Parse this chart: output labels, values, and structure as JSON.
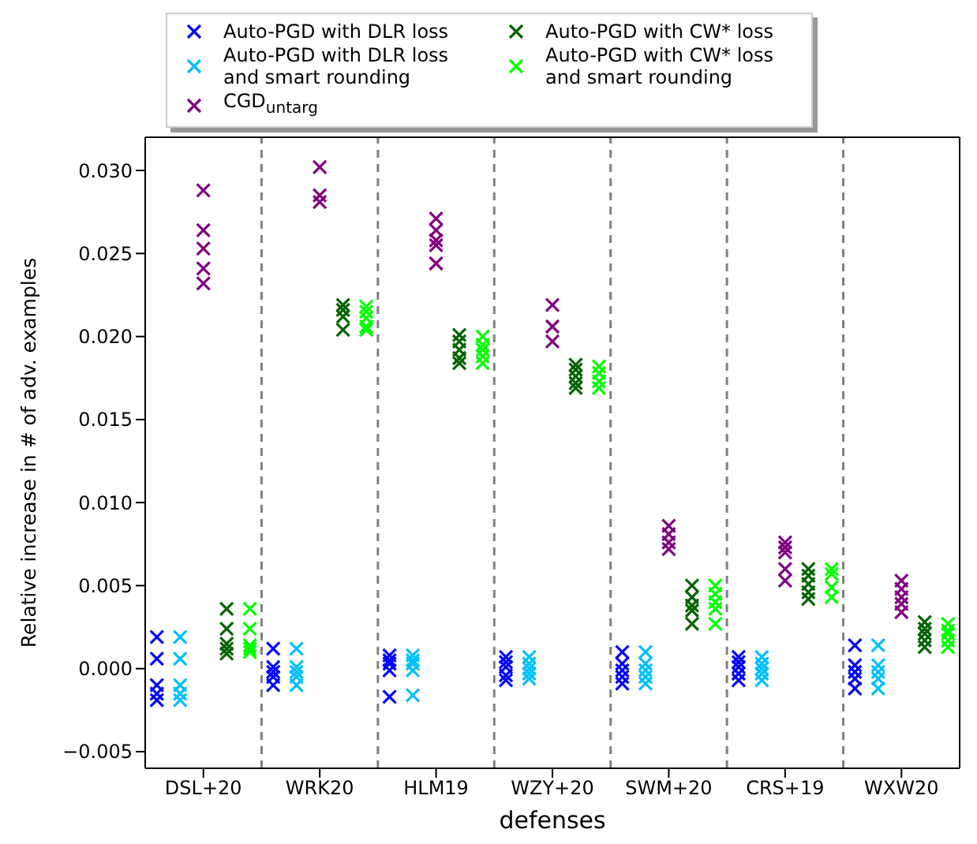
{
  "chart_data": {
    "type": "scatter",
    "xlabel": "defenses",
    "ylabel": "Relative increase in # of adv. examples",
    "categories": [
      "DSL+20",
      "WRK20",
      "HLM19",
      "WZY+20",
      "SWM+20",
      "CRS+19",
      "WXW20"
    ],
    "marker": "cross",
    "legend": "top",
    "ylim": [
      -0.006,
      0.032
    ],
    "yticks": [
      {
        "value": -0.005,
        "label": "−0.005"
      },
      {
        "value": 0,
        "label": "0.000"
      },
      {
        "value": 0.005,
        "label": "0.005"
      },
      {
        "value": 0.01,
        "label": "0.010"
      },
      {
        "value": 0.015,
        "label": "0.015"
      },
      {
        "value": 0.02,
        "label": "0.020"
      },
      {
        "value": 0.025,
        "label": "0.025"
      },
      {
        "value": 0.03,
        "label": "0.030"
      }
    ],
    "series": [
      {
        "name": "Auto-PGD with DLR loss",
        "color": "#0000ff",
        "x": [
          "DSL+20",
          "DSL+20",
          "DSL+20",
          "DSL+20",
          "DSL+20",
          "WRK20",
          "WRK20",
          "WRK20",
          "WRK20",
          "WRK20",
          "HLM19",
          "HLM19",
          "HLM19",
          "HLM19",
          "HLM19",
          "WZY+20",
          "WZY+20",
          "WZY+20",
          "WZY+20",
          "WZY+20",
          "SWM+20",
          "SWM+20",
          "SWM+20",
          "SWM+20",
          "SWM+20",
          "CRS+19",
          "CRS+19",
          "CRS+19",
          "CRS+19",
          "CRS+19",
          "WXW20",
          "WXW20",
          "WXW20",
          "WXW20",
          "WXW20"
        ],
        "values": [
          0.0019,
          0.0006,
          -0.001,
          -0.0015,
          -0.0019,
          0.0012,
          0.0001,
          -0.0002,
          -0.0005,
          -0.001,
          0.0008,
          0.0005,
          0.0003,
          -0.0001,
          -0.0017,
          0.0007,
          0.0004,
          0.0001,
          -0.0004,
          -0.0007,
          0.001,
          0.0003,
          -0.0001,
          -0.0005,
          -0.0009,
          0.0007,
          0.0004,
          0.0001,
          -0.0003,
          -0.0007,
          0.0014,
          0.0002,
          -0.0002,
          -0.0006,
          -0.0012
        ]
      },
      {
        "name": "Auto-PGD with DLR loss and smart rounding",
        "color": "#00bfff",
        "x": [
          "DSL+20",
          "DSL+20",
          "DSL+20",
          "DSL+20",
          "DSL+20",
          "WRK20",
          "WRK20",
          "WRK20",
          "WRK20",
          "WRK20",
          "HLM19",
          "HLM19",
          "HLM19",
          "HLM19",
          "HLM19",
          "WZY+20",
          "WZY+20",
          "WZY+20",
          "WZY+20",
          "WZY+20",
          "SWM+20",
          "SWM+20",
          "SWM+20",
          "SWM+20",
          "SWM+20",
          "CRS+19",
          "CRS+19",
          "CRS+19",
          "CRS+19",
          "CRS+19",
          "WXW20",
          "WXW20",
          "WXW20",
          "WXW20",
          "WXW20"
        ],
        "values": [
          0.0019,
          0.0006,
          -0.001,
          -0.0015,
          -0.0019,
          0.0012,
          0.0001,
          -0.0002,
          -0.0005,
          -0.001,
          0.0008,
          0.0005,
          0.0003,
          -0.0001,
          -0.0016,
          0.0007,
          0.0003,
          0,
          -0.0003,
          -0.0006,
          0.001,
          0.0003,
          -0.0001,
          -0.0005,
          -0.0009,
          0.0007,
          0.0003,
          0,
          -0.0003,
          -0.0007,
          0.0014,
          0.0002,
          -0.0002,
          -0.0006,
          -0.0012
        ]
      },
      {
        "name": "CGD$_{untarg}$",
        "color": "#800080",
        "x": [
          "DSL+20",
          "DSL+20",
          "DSL+20",
          "DSL+20",
          "DSL+20",
          "WRK20",
          "WRK20",
          "WRK20",
          "WRK20",
          "WRK20",
          "HLM19",
          "HLM19",
          "HLM19",
          "HLM19",
          "HLM19",
          "WZY+20",
          "WZY+20",
          "WZY+20",
          "SWM+20",
          "SWM+20",
          "SWM+20",
          "SWM+20",
          "CRS+19",
          "CRS+19",
          "CRS+19",
          "CRS+19",
          "CRS+19",
          "WXW20",
          "WXW20",
          "WXW20",
          "WXW20",
          "WXW20"
        ],
        "values": [
          0.0288,
          0.0264,
          0.0253,
          0.0241,
          0.0232,
          0.0302,
          null,
          null,
          0.0285,
          0.0281,
          0.0271,
          0.0264,
          0.0258,
          0.0255,
          0.0244,
          0.0219,
          0.0206,
          0.0197,
          0.0086,
          0.0081,
          0.0076,
          0.0072,
          0.0076,
          0.0073,
          0.007,
          0.006,
          0.0053,
          0.0053,
          0.0048,
          0.0043,
          0.0039,
          0.0034
        ]
      },
      {
        "name": "Auto-PGD with CW* loss",
        "color": "#006400",
        "x": [
          "DSL+20",
          "DSL+20",
          "DSL+20",
          "DSL+20",
          "DSL+20",
          "WRK20",
          "WRK20",
          "WRK20",
          "WRK20",
          "WRK20",
          "HLM19",
          "HLM19",
          "HLM19",
          "HLM19",
          "HLM19",
          "WZY+20",
          "WZY+20",
          "WZY+20",
          "WZY+20",
          "WZY+20",
          "SWM+20",
          "SWM+20",
          "SWM+20",
          "SWM+20",
          "SWM+20",
          "CRS+19",
          "CRS+19",
          "CRS+19",
          "CRS+19",
          "CRS+19",
          "WXW20",
          "WXW20",
          "WXW20",
          "WXW20",
          "WXW20"
        ],
        "values": [
          0.0036,
          0.0024,
          0.0015,
          0.0012,
          0.0009,
          0.0219,
          0.0216,
          0.0212,
          null,
          0.0204,
          0.0201,
          0.0197,
          0.0192,
          0.0187,
          0.0184,
          0.0183,
          0.018,
          0.0176,
          0.0172,
          0.0169,
          0.005,
          0.0043,
          0.0038,
          0.0035,
          0.0027,
          0.006,
          0.0056,
          0.0051,
          0.0046,
          0.0042,
          0.0028,
          0.0024,
          0.0021,
          0.0017,
          0.0013
        ]
      },
      {
        "name": "Auto-PGD with CW* loss and smart rounding",
        "color": "#00ff00",
        "x": [
          "DSL+20",
          "DSL+20",
          "DSL+20",
          "DSL+20",
          "DSL+20",
          "WRK20",
          "WRK20",
          "WRK20",
          "WRK20",
          "WRK20",
          "HLM19",
          "HLM19",
          "HLM19",
          "HLM19",
          "HLM19",
          "WZY+20",
          "WZY+20",
          "WZY+20",
          "WZY+20",
          "SWM+20",
          "SWM+20",
          "SWM+20",
          "SWM+20",
          "SWM+20",
          "CRS+19",
          "CRS+19",
          "CRS+19",
          "CRS+19",
          "WXW20",
          "WXW20",
          "WXW20",
          "WXW20",
          "WXW20"
        ],
        "values": [
          0.0036,
          0.0024,
          0.0014,
          0.0012,
          0.001,
          0.0218,
          0.0215,
          0.0211,
          0.0206,
          0.0204,
          0.02,
          0.0195,
          0.0192,
          0.0188,
          0.0184,
          0.0182,
          0.0178,
          0.0173,
          0.0169,
          0.005,
          0.0045,
          0.004,
          0.0036,
          0.0027,
          0.006,
          0.0057,
          0.0049,
          0.0043,
          0.0027,
          0.0023,
          0.0021,
          0.0017,
          0.0013
        ]
      }
    ]
  }
}
